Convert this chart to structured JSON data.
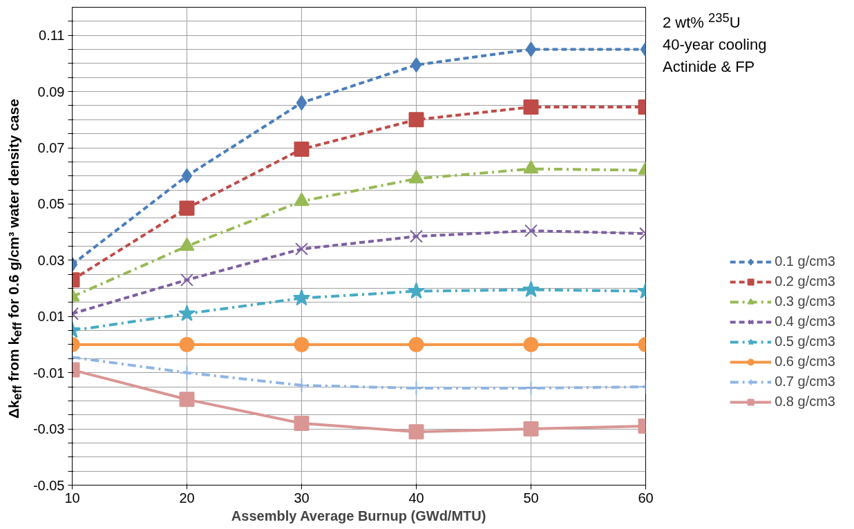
{
  "chart_data": {
    "type": "line",
    "xlabel": "Assembly Average Burnup (GWd/MTU)",
    "ylabel": "Δk$_{eff}$ from k$_{eff}$ for 0.6 g/cm³ water density case",
    "x": [
      10,
      20,
      30,
      40,
      50,
      60
    ],
    "xlim": [
      10,
      60
    ],
    "xticks": [
      10,
      20,
      30,
      40,
      50,
      60
    ],
    "ylim": [
      -0.05,
      0.12
    ],
    "yticks": [
      {
        "value": -0.05,
        "label": "-0.05"
      },
      {
        "value": -0.045,
        "label": null
      },
      {
        "value": -0.04,
        "label": null
      },
      {
        "value": -0.035,
        "label": null
      },
      {
        "value": -0.03,
        "label": "-0.03"
      },
      {
        "value": -0.025,
        "label": null
      },
      {
        "value": -0.02,
        "label": null
      },
      {
        "value": -0.015,
        "label": null
      },
      {
        "value": -0.01,
        "label": "-0.01"
      },
      {
        "value": -0.005,
        "label": null
      },
      {
        "value": 0,
        "label": null
      },
      {
        "value": 0.005,
        "label": null
      },
      {
        "value": 0.01,
        "label": "0.01"
      },
      {
        "value": 0.015,
        "label": null
      },
      {
        "value": 0.02,
        "label": null
      },
      {
        "value": 0.025,
        "label": null
      },
      {
        "value": 0.03,
        "label": "0.03"
      },
      {
        "value": 0.035,
        "label": null
      },
      {
        "value": 0.04,
        "label": null
      },
      {
        "value": 0.045,
        "label": null
      },
      {
        "value": 0.05,
        "label": "0.05"
      },
      {
        "value": 0.055,
        "label": null
      },
      {
        "value": 0.06,
        "label": null
      },
      {
        "value": 0.065,
        "label": null
      },
      {
        "value": 0.07,
        "label": "0.07"
      },
      {
        "value": 0.075,
        "label": null
      },
      {
        "value": 0.08,
        "label": null
      },
      {
        "value": 0.085,
        "label": null
      },
      {
        "value": 0.09,
        "label": "0.09"
      },
      {
        "value": 0.095,
        "label": null
      },
      {
        "value": 0.1,
        "label": null
      },
      {
        "value": 0.105,
        "label": null
      },
      {
        "value": 0.11,
        "label": "0.11"
      },
      {
        "value": 0.115,
        "label": null
      }
    ],
    "grid": true,
    "legend": "right",
    "annotations": [
      "2 wt% $^{235}$U",
      "40-year cooling",
      "Actinide & FP"
    ],
    "series": [
      {
        "name": "0.1 g/cm3",
        "color": "#4a7ebb",
        "marker": "diamond",
        "line_style": "dashed",
        "values": [
          0.0285,
          0.06,
          0.086,
          0.0995,
          0.105,
          0.105
        ]
      },
      {
        "name": "0.2 g/cm3",
        "color": "#be4b48",
        "marker": "square",
        "line_style": "dashed",
        "values": [
          0.023,
          0.0485,
          0.0695,
          0.08,
          0.0845,
          0.0845
        ]
      },
      {
        "name": "0.3 g/cm3",
        "color": "#98b954",
        "marker": "triangle",
        "line_style": "dashdot",
        "values": [
          0.017,
          0.035,
          0.051,
          0.059,
          0.0625,
          0.062
        ]
      },
      {
        "name": "0.4 g/cm3",
        "color": "#7d5fa0",
        "marker": "x",
        "line_style": "dashed",
        "values": [
          0.011,
          0.023,
          0.034,
          0.0385,
          0.0405,
          0.0395
        ]
      },
      {
        "name": "0.5 g/cm3",
        "color": "#46aac5",
        "marker": "star",
        "line_style": "dashdot",
        "values": [
          0.005,
          0.011,
          0.0165,
          0.019,
          0.0195,
          0.019
        ]
      },
      {
        "name": "0.6 g/cm3",
        "color": "#f79646",
        "marker": "circle",
        "line_style": "solid",
        "values": [
          0,
          0,
          0,
          0,
          0,
          0
        ]
      },
      {
        "name": "0.7 g/cm3",
        "color": "#8eb4e3",
        "marker": "cross",
        "line_style": "dashdot",
        "values": [
          -0.0045,
          -0.01,
          -0.0145,
          -0.0155,
          -0.0155,
          -0.015
        ]
      },
      {
        "name": "0.8 g/cm3",
        "color": "#d99694",
        "marker": "square",
        "line_style": "solid",
        "values": [
          -0.009,
          -0.0195,
          -0.028,
          -0.031,
          -0.03,
          -0.029
        ]
      }
    ]
  }
}
